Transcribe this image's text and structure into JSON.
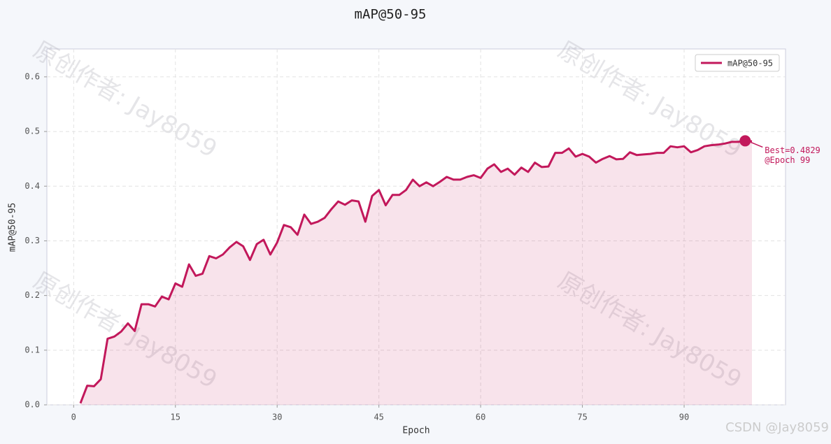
{
  "chart_data": {
    "type": "line",
    "title": "mAP@50-95",
    "xlabel": "Epoch",
    "ylabel": "mAP@50-95",
    "x": [
      1,
      2,
      3,
      4,
      5,
      6,
      7,
      8,
      9,
      10,
      11,
      12,
      13,
      14,
      15,
      16,
      17,
      18,
      19,
      20,
      21,
      22,
      23,
      24,
      25,
      26,
      27,
      28,
      29,
      30,
      31,
      32,
      33,
      34,
      35,
      36,
      37,
      38,
      39,
      40,
      41,
      42,
      43,
      44,
      45,
      46,
      47,
      48,
      49,
      50,
      51,
      52,
      53,
      54,
      55,
      56,
      57,
      58,
      59,
      60,
      61,
      62,
      63,
      64,
      65,
      66,
      67,
      68,
      69,
      70,
      71,
      72,
      73,
      74,
      75,
      76,
      77,
      78,
      79,
      80,
      81,
      82,
      83,
      84,
      85,
      86,
      87,
      88,
      89,
      90,
      91,
      92,
      93,
      94,
      95,
      96,
      97,
      98,
      99,
      100
    ],
    "series": [
      {
        "name": "mAP@50-95",
        "color": "#c2185b",
        "values": [
          0.003,
          0.035,
          0.034,
          0.047,
          0.121,
          0.125,
          0.134,
          0.149,
          0.135,
          0.184,
          0.184,
          0.18,
          0.198,
          0.193,
          0.222,
          0.216,
          0.257,
          0.236,
          0.24,
          0.272,
          0.268,
          0.275,
          0.288,
          0.298,
          0.29,
          0.265,
          0.294,
          0.302,
          0.275,
          0.297,
          0.329,
          0.325,
          0.311,
          0.348,
          0.331,
          0.335,
          0.342,
          0.358,
          0.372,
          0.366,
          0.374,
          0.372,
          0.335,
          0.382,
          0.393,
          0.365,
          0.384,
          0.384,
          0.393,
          0.412,
          0.4,
          0.407,
          0.4,
          0.408,
          0.417,
          0.412,
          0.412,
          0.417,
          0.42,
          0.415,
          0.432,
          0.44,
          0.426,
          0.432,
          0.421,
          0.434,
          0.426,
          0.443,
          0.435,
          0.436,
          0.461,
          0.461,
          0.469,
          0.454,
          0.459,
          0.454,
          0.443,
          0.45,
          0.455,
          0.449,
          0.45,
          0.462,
          0.457,
          0.458,
          0.459,
          0.461,
          0.461,
          0.473,
          0.471,
          0.473,
          0.462,
          0.466,
          0.473,
          0.475,
          0.476,
          0.478,
          0.481,
          0.481,
          0.4829,
          0.482
        ]
      }
    ],
    "xlim": [
      -3.95,
      104.95
    ],
    "xticks": [
      0,
      15,
      30,
      45,
      60,
      75,
      90
    ],
    "ylim": [
      0,
      0.651
    ],
    "yticks": [
      {
        "value": 0,
        "label": "0.0"
      },
      0.1,
      0.2,
      0.3,
      0.4,
      0.5,
      0.6
    ],
    "grid": true,
    "legend": "upper right",
    "annotation": [
      "Best=0.4829",
      "@Epoch 99"
    ],
    "watermark": "原创作者: Jay8059",
    "credit": "CSDN @Jay8059"
  }
}
